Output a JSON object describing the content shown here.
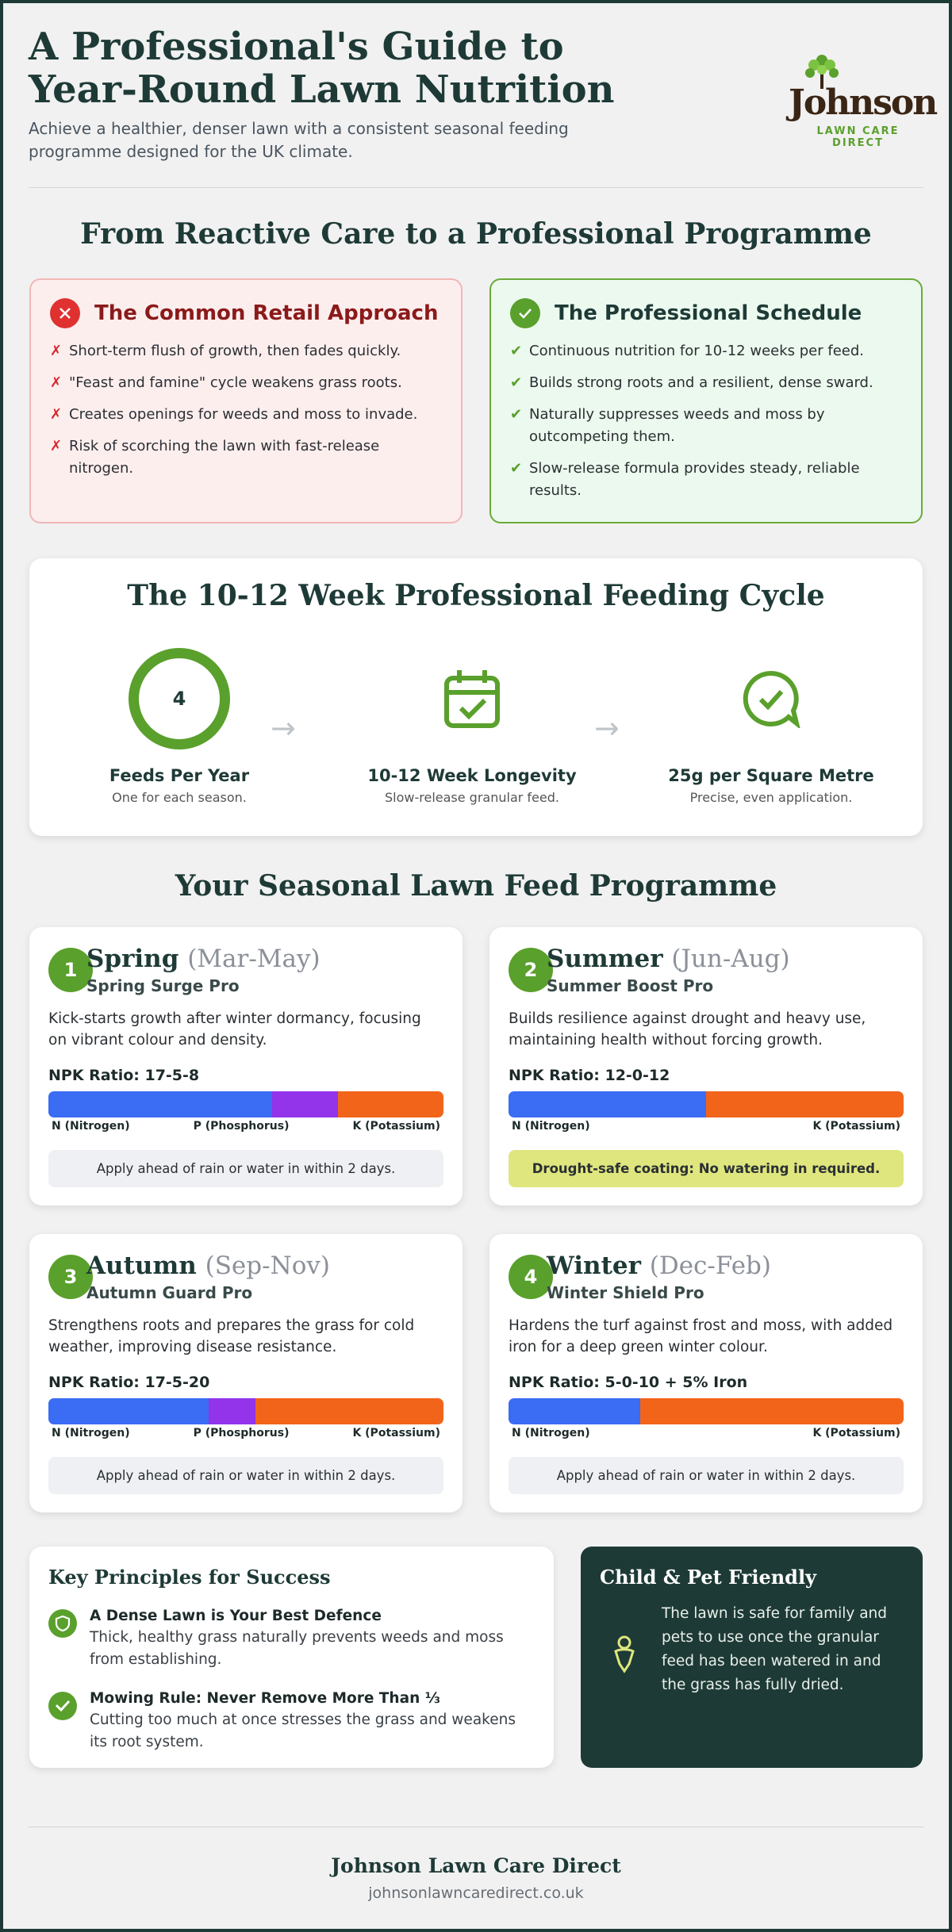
{
  "header": {
    "title_lines": [
      "A Professional's Guide to",
      "Year-Round Lawn Nutrition"
    ],
    "subtitle": "Achieve a healthier, denser lawn with a consistent seasonal feeding programme designed for the UK climate.",
    "logo": {
      "name": "Johnson",
      "tagline": "LAWN CARE DIRECT"
    }
  },
  "comparison": {
    "heading": "From Reactive Care to a Professional Programme",
    "retail": {
      "title": "The Common Retail Approach",
      "items": [
        "Short-term flush of growth, then fades quickly.",
        "\"Feast and famine\" cycle weakens grass roots.",
        "Creates openings for weeds and moss to invade.",
        "Risk of scorching the lawn with fast-release nitrogen."
      ]
    },
    "professional": {
      "title": "The Professional Schedule",
      "items": [
        "Continuous nutrition for 10-12 weeks per feed.",
        "Builds strong roots and a resilient, dense sward.",
        "Naturally suppresses weeds and moss by outcompeting them.",
        "Slow-release formula provides steady, reliable results."
      ]
    }
  },
  "cycle": {
    "heading": "The 10-12 Week Professional Feeding Cycle",
    "steps": [
      {
        "value": 4,
        "title": "Feeds Per Year",
        "caption": "One for each season."
      },
      {
        "title": "10-12 Week Longevity",
        "caption": "Slow-release granular feed."
      },
      {
        "title": "25g per Square Metre",
        "caption": "Precise, even application."
      }
    ]
  },
  "programme": {
    "heading": "Your Seasonal Lawn Feed Programme",
    "seasons": [
      {
        "number": 1,
        "name": "Spring",
        "months": "(Mar-May)",
        "product": "Spring Surge Pro",
        "description": "Kick-starts growth after winter dormancy, focusing on vibrant colour and density.",
        "npk_label": "NPK Ratio: 17-5-8",
        "npk": [
          {
            "label": "N (Nitrogen)",
            "value": 17,
            "color": "#3a6cf4"
          },
          {
            "label": "P (Phosphorus)",
            "value": 5,
            "color": "#9333ea"
          },
          {
            "label": "K (Potassium)",
            "value": 8,
            "color": "#f26419"
          }
        ],
        "note": "Apply ahead of rain or water in within 2 days.",
        "note_highlight": false
      },
      {
        "number": 2,
        "name": "Summer",
        "months": "(Jun-Aug)",
        "product": "Summer Boost Pro",
        "description": "Builds resilience against drought and heavy use, maintaining health without forcing growth.",
        "npk_label": "NPK Ratio: 12-0-12",
        "npk": [
          {
            "label": "N (Nitrogen)",
            "value": 12,
            "color": "#3a6cf4"
          },
          {
            "label": "K (Potassium)",
            "value": 12,
            "color": "#f26419"
          }
        ],
        "note": "Drought-safe coating: No watering in required.",
        "note_highlight": true
      },
      {
        "number": 3,
        "name": "Autumn",
        "months": "(Sep-Nov)",
        "product": "Autumn Guard Pro",
        "description": "Strengthens roots and prepares the grass for cold weather, improving disease resistance.",
        "npk_label": "NPK Ratio: 17-5-20",
        "npk": [
          {
            "label": "N (Nitrogen)",
            "value": 17,
            "color": "#3a6cf4"
          },
          {
            "label": "P (Phosphorus)",
            "value": 5,
            "color": "#9333ea"
          },
          {
            "label": "K (Potassium)",
            "value": 20,
            "color": "#f26419"
          }
        ],
        "note": "Apply ahead of rain or water in within 2 days.",
        "note_highlight": false
      },
      {
        "number": 4,
        "name": "Winter",
        "months": "(Dec-Feb)",
        "product": "Winter Shield Pro",
        "description": "Hardens the turf against frost and moss, with added iron for a deep green winter colour.",
        "npk_label": "NPK Ratio: 5-0-10 + 5% Iron",
        "npk": [
          {
            "label": "N (Nitrogen)",
            "value": 5,
            "color": "#3a6cf4"
          },
          {
            "label": "K (Potassium)",
            "value": 10,
            "color": "#f26419"
          }
        ],
        "note": "Apply ahead of rain or water in within 2 days.",
        "note_highlight": false
      }
    ]
  },
  "principles": {
    "title": "Key Principles for Success",
    "items": [
      {
        "title": "A Dense Lawn is Your Best Defence",
        "text": "Thick, healthy grass naturally prevents weeds and moss from establishing."
      },
      {
        "title": "Mowing Rule: Never Remove More Than ⅓",
        "text": "Cutting too much at once stresses the grass and weakens its root system."
      }
    ]
  },
  "pet_friendly": {
    "title": "Child & Pet Friendly",
    "text": "The lawn is safe for family and pets to use once the granular feed has been watered in and the grass has fully dried."
  },
  "footer": {
    "company": "Johnson Lawn Care Direct",
    "url": "johnsonlawncaredirect.co.uk"
  }
}
